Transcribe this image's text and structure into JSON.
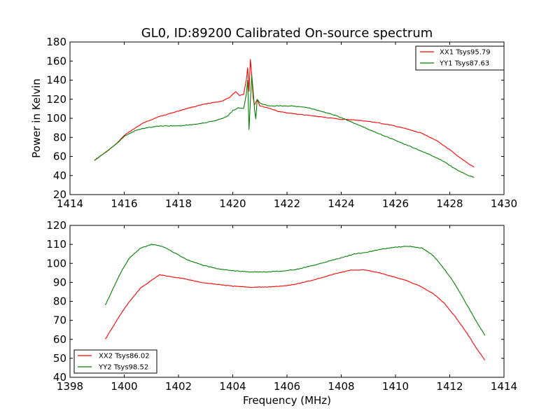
{
  "colors": {
    "xx": "#ff0000",
    "yy": "#008000",
    "axes": "#000000"
  },
  "chart_data": [
    {
      "type": "line",
      "title": "GL0, ID:89200 Calibrated On-source spectrum",
      "xlabel": "",
      "ylabel": "Power in Kelvin",
      "xlim": [
        1414,
        1430
      ],
      "ylim": [
        20,
        180
      ],
      "xticks": [
        "1414",
        "1416",
        "1418",
        "1420",
        "1422",
        "1424",
        "1426",
        "1428",
        "1430"
      ],
      "yticks": [
        "20",
        "40",
        "60",
        "80",
        "100",
        "120",
        "140",
        "160",
        "180"
      ],
      "legend_position": "top-right",
      "series": [
        {
          "name": "XX1 Tsys95.79",
          "color": "#ff0000",
          "points": [
            [
              1414.9,
              56
            ],
            [
              1415.3,
              64
            ],
            [
              1415.7,
              73
            ],
            [
              1416.0,
              82
            ],
            [
              1416.3,
              88
            ],
            [
              1416.7,
              95
            ],
            [
              1417.2,
              101
            ],
            [
              1417.8,
              106
            ],
            [
              1418.4,
              111
            ],
            [
              1419.0,
              115
            ],
            [
              1419.6,
              118
            ],
            [
              1419.9,
              122
            ],
            [
              1420.1,
              128
            ],
            [
              1420.25,
              124
            ],
            [
              1420.4,
              125
            ],
            [
              1420.5,
              140
            ],
            [
              1420.55,
              153
            ],
            [
              1420.6,
              128
            ],
            [
              1420.65,
              162
            ],
            [
              1420.7,
              145
            ],
            [
              1420.75,
              122
            ],
            [
              1420.8,
              114
            ],
            [
              1420.9,
              120
            ],
            [
              1421.0,
              113
            ],
            [
              1421.3,
              111
            ],
            [
              1421.7,
              107
            ],
            [
              1422.2,
              105
            ],
            [
              1422.8,
              103
            ],
            [
              1423.4,
              101
            ],
            [
              1424.0,
              99
            ],
            [
              1424.6,
              98
            ],
            [
              1425.2,
              96
            ],
            [
              1425.8,
              93
            ],
            [
              1426.4,
              89
            ],
            [
              1427.0,
              84
            ],
            [
              1427.5,
              77
            ],
            [
              1428.0,
              67
            ],
            [
              1428.4,
              58
            ],
            [
              1428.7,
              52
            ],
            [
              1428.9,
              49
            ]
          ]
        },
        {
          "name": "YY1 Tsys87.63",
          "color": "#008000",
          "points": [
            [
              1414.9,
              56
            ],
            [
              1415.3,
              64
            ],
            [
              1415.7,
              73
            ],
            [
              1416.0,
              81
            ],
            [
              1416.4,
              87
            ],
            [
              1416.8,
              90
            ],
            [
              1417.3,
              92
            ],
            [
              1418.0,
              92
            ],
            [
              1418.7,
              94
            ],
            [
              1419.3,
              97
            ],
            [
              1419.8,
              102
            ],
            [
              1420.0,
              108
            ],
            [
              1420.2,
              111
            ],
            [
              1420.4,
              110
            ],
            [
              1420.5,
              125
            ],
            [
              1420.55,
              140
            ],
            [
              1420.6,
              88
            ],
            [
              1420.65,
              118
            ],
            [
              1420.7,
              145
            ],
            [
              1420.75,
              130
            ],
            [
              1420.8,
              110
            ],
            [
              1420.85,
              99
            ],
            [
              1420.9,
              120
            ],
            [
              1421.0,
              116
            ],
            [
              1421.3,
              113
            ],
            [
              1421.7,
              113
            ],
            [
              1422.2,
              113
            ],
            [
              1422.8,
              111
            ],
            [
              1423.3,
              107
            ],
            [
              1423.8,
              103
            ],
            [
              1424.3,
              97
            ],
            [
              1424.8,
              91
            ],
            [
              1425.3,
              85
            ],
            [
              1425.9,
              78
            ],
            [
              1426.5,
              71
            ],
            [
              1427.1,
              64
            ],
            [
              1427.7,
              56
            ],
            [
              1428.2,
              47
            ],
            [
              1428.6,
              41
            ],
            [
              1428.9,
              38
            ]
          ]
        }
      ]
    },
    {
      "type": "line",
      "title": "",
      "xlabel": "Frequency (MHz)",
      "ylabel": "",
      "xlim": [
        1398,
        1414
      ],
      "ylim": [
        40,
        120
      ],
      "xticks": [
        "1398",
        "1400",
        "1402",
        "1404",
        "1406",
        "1408",
        "1410",
        "1412",
        "1414"
      ],
      "yticks": [
        "40",
        "50",
        "60",
        "70",
        "80",
        "90",
        "100",
        "110",
        "120"
      ],
      "legend_position": "bottom-left",
      "series": [
        {
          "name": "XX2 Tsys86.02",
          "color": "#ff0000",
          "points": [
            [
              1399.3,
              60
            ],
            [
              1399.6,
              67
            ],
            [
              1399.9,
              74
            ],
            [
              1400.2,
              80
            ],
            [
              1400.6,
              87
            ],
            [
              1401.0,
              91
            ],
            [
              1401.3,
              94
            ],
            [
              1401.7,
              93
            ],
            [
              1402.2,
              92
            ],
            [
              1402.8,
              90
            ],
            [
              1403.4,
              89
            ],
            [
              1404.0,
              88
            ],
            [
              1404.6,
              87.5
            ],
            [
              1405.2,
              87.5
            ],
            [
              1405.8,
              88
            ],
            [
              1406.3,
              89
            ],
            [
              1406.9,
              91
            ],
            [
              1407.4,
              93
            ],
            [
              1407.9,
              95
            ],
            [
              1408.4,
              96.5
            ],
            [
              1408.9,
              96.5
            ],
            [
              1409.4,
              95
            ],
            [
              1409.9,
              93
            ],
            [
              1410.4,
              91
            ],
            [
              1410.9,
              88
            ],
            [
              1411.4,
              84
            ],
            [
              1411.8,
              79
            ],
            [
              1412.2,
              72
            ],
            [
              1412.6,
              64
            ],
            [
              1413.0,
              55
            ],
            [
              1413.3,
              49
            ]
          ]
        },
        {
          "name": "YY2 Tsys98.52",
          "color": "#008000",
          "points": [
            [
              1399.3,
              78
            ],
            [
              1399.6,
              87
            ],
            [
              1399.9,
              96
            ],
            [
              1400.2,
              103
            ],
            [
              1400.6,
              108
            ],
            [
              1401.0,
              110
            ],
            [
              1401.4,
              109
            ],
            [
              1401.8,
              106
            ],
            [
              1402.3,
              102
            ],
            [
              1402.9,
              99
            ],
            [
              1403.5,
              97
            ],
            [
              1404.1,
              96
            ],
            [
              1404.7,
              95.5
            ],
            [
              1405.3,
              95.5
            ],
            [
              1405.9,
              96
            ],
            [
              1406.4,
              97
            ],
            [
              1407.0,
              99
            ],
            [
              1407.5,
              101
            ],
            [
              1408.0,
              103
            ],
            [
              1408.5,
              105
            ],
            [
              1409.0,
              106
            ],
            [
              1409.5,
              107.5
            ],
            [
              1410.0,
              108.5
            ],
            [
              1410.5,
              109
            ],
            [
              1411.0,
              108
            ],
            [
              1411.4,
              104
            ],
            [
              1411.8,
              97
            ],
            [
              1412.2,
              89
            ],
            [
              1412.6,
              79
            ],
            [
              1413.0,
              69
            ],
            [
              1413.3,
              62
            ]
          ]
        }
      ]
    }
  ]
}
